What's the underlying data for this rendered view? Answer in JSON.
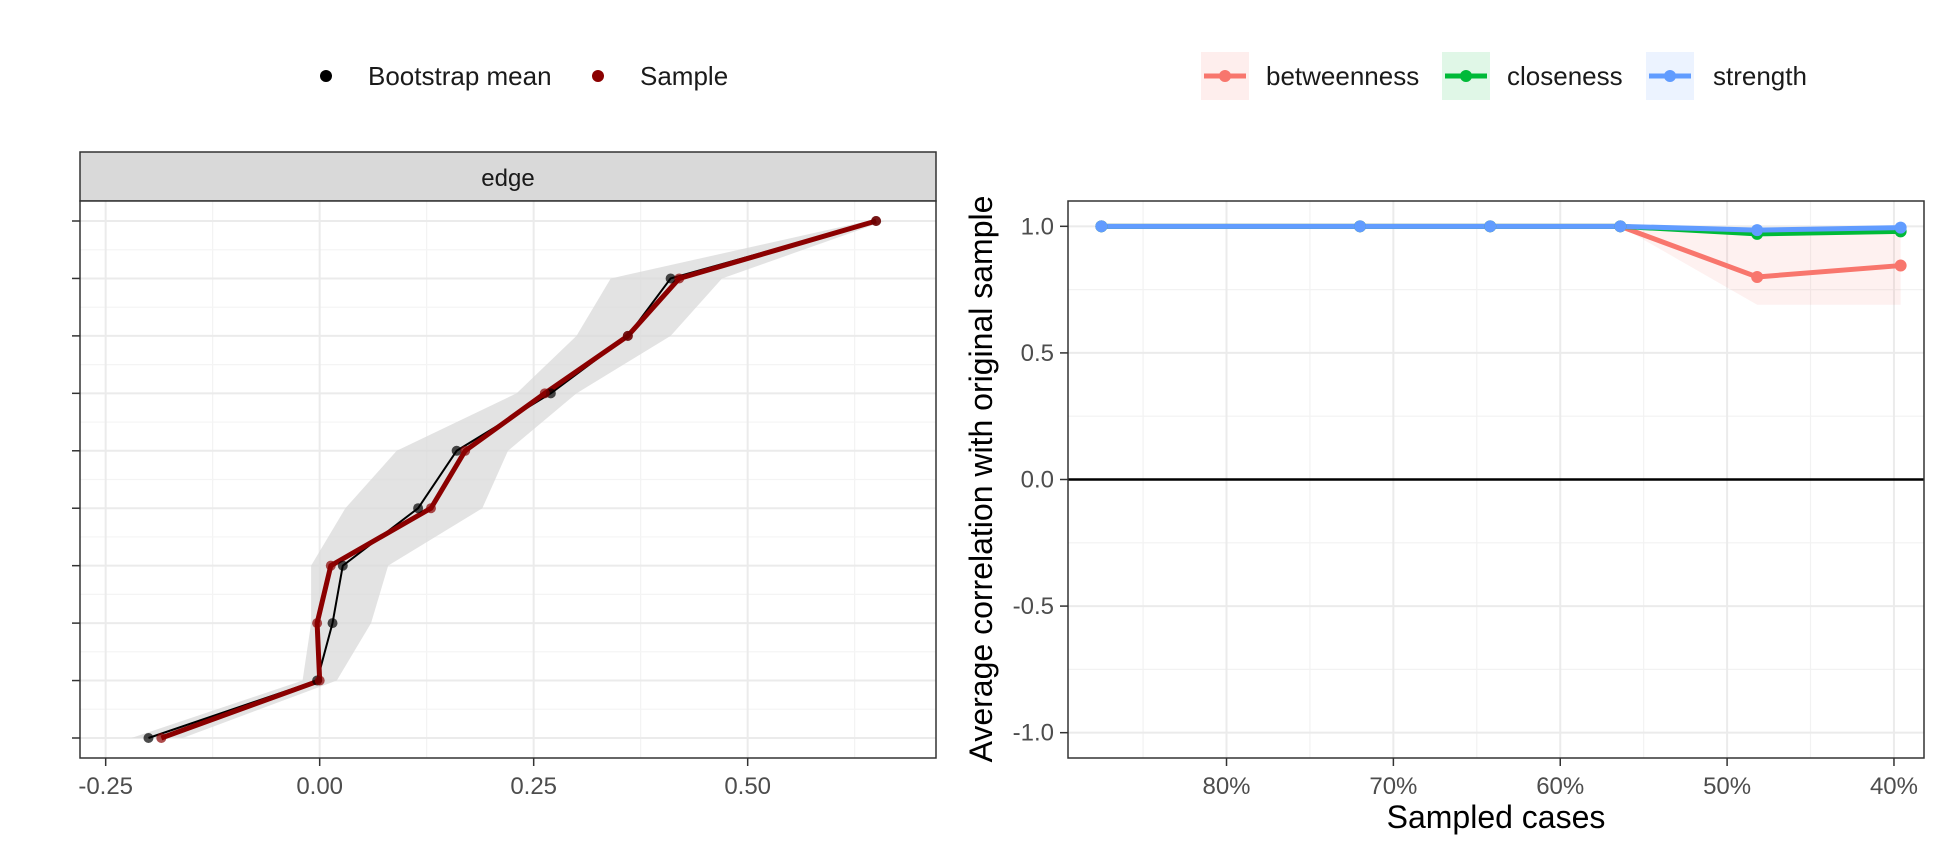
{
  "chart_data": [
    {
      "type": "line",
      "strip_label": "edge",
      "xlim": [
        -0.28,
        0.72
      ],
      "x_ticks": [
        -0.25,
        0.0,
        0.25,
        0.5
      ],
      "x_tick_labels": [
        "-0.25",
        "0.00",
        "0.25",
        "0.50"
      ],
      "y_count": 10,
      "legend": {
        "position": "top",
        "entries": [
          {
            "label": "Bootstrap mean",
            "color": "#000000"
          },
          {
            "label": "Sample",
            "color": "#8b0000"
          }
        ]
      },
      "series": [
        {
          "name": "Bootstrap mean",
          "color": "#000000",
          "values": [
            0.65,
            0.41,
            0.36,
            0.27,
            0.16,
            0.115,
            0.027,
            0.015,
            -0.003,
            -0.2
          ]
        },
        {
          "name": "Sample",
          "color": "#8b0000",
          "values": [
            0.65,
            0.42,
            0.36,
            0.263,
            0.17,
            0.13,
            0.013,
            -0.003,
            0.0,
            -0.185
          ]
        }
      ],
      "ci_band": {
        "color": "#d9d9d9",
        "lower": [
          0.64,
          0.34,
          0.3,
          0.23,
          0.09,
          0.03,
          -0.01,
          -0.01,
          -0.02,
          -0.22
        ],
        "upper": [
          0.66,
          0.47,
          0.41,
          0.3,
          0.22,
          0.19,
          0.08,
          0.06,
          0.02,
          -0.16
        ]
      },
      "grid": true
    },
    {
      "type": "line",
      "xlabel": "Sampled cases",
      "ylabel": "Average correlation with original sample",
      "xlim": [
        0.895,
        0.382
      ],
      "ylim": [
        -1.1,
        1.1
      ],
      "x_ticks": [
        0.8,
        0.7,
        0.6,
        0.5,
        0.4
      ],
      "x_tick_labels": [
        "80%",
        "70%",
        "60%",
        "50%",
        "40%"
      ],
      "y_ticks": [
        1.0,
        0.5,
        0.0,
        -0.5,
        -1.0
      ],
      "y_tick_labels": [
        "1.0",
        "0.5",
        "0.0",
        "-0.5",
        "-1.0"
      ],
      "reference_line": 0.0,
      "x": [
        0.875,
        0.72,
        0.642,
        0.564,
        0.482,
        0.396
      ],
      "legend": {
        "position": "top",
        "entries": [
          {
            "label": "betweenness",
            "color": "#f8766d"
          },
          {
            "label": "closeness",
            "color": "#00ba38"
          },
          {
            "label": "strength",
            "color": "#619cff"
          }
        ]
      },
      "series": [
        {
          "name": "betweenness",
          "color": "#f8766d",
          "values": [
            1.0,
            1.0,
            1.0,
            1.0,
            0.8,
            0.845
          ],
          "lower": [
            1.0,
            1.0,
            1.0,
            1.0,
            0.69,
            0.69
          ],
          "upper": [
            1.0,
            1.0,
            1.0,
            1.0,
            0.96,
            0.985
          ]
        },
        {
          "name": "closeness",
          "color": "#00ba38",
          "values": [
            1.0,
            1.0,
            1.0,
            1.0,
            0.97,
            0.98
          ],
          "lower": [
            1.0,
            1.0,
            1.0,
            1.0,
            0.96,
            0.97
          ],
          "upper": [
            1.0,
            1.0,
            1.0,
            1.0,
            0.98,
            0.99
          ]
        },
        {
          "name": "strength",
          "color": "#619cff",
          "values": [
            1.0,
            1.0,
            1.0,
            1.0,
            0.985,
            0.995
          ],
          "lower": [
            1.0,
            1.0,
            1.0,
            1.0,
            0.98,
            0.99
          ],
          "upper": [
            1.0,
            1.0,
            1.0,
            1.0,
            0.99,
            1.0
          ]
        }
      ],
      "grid": true
    }
  ]
}
